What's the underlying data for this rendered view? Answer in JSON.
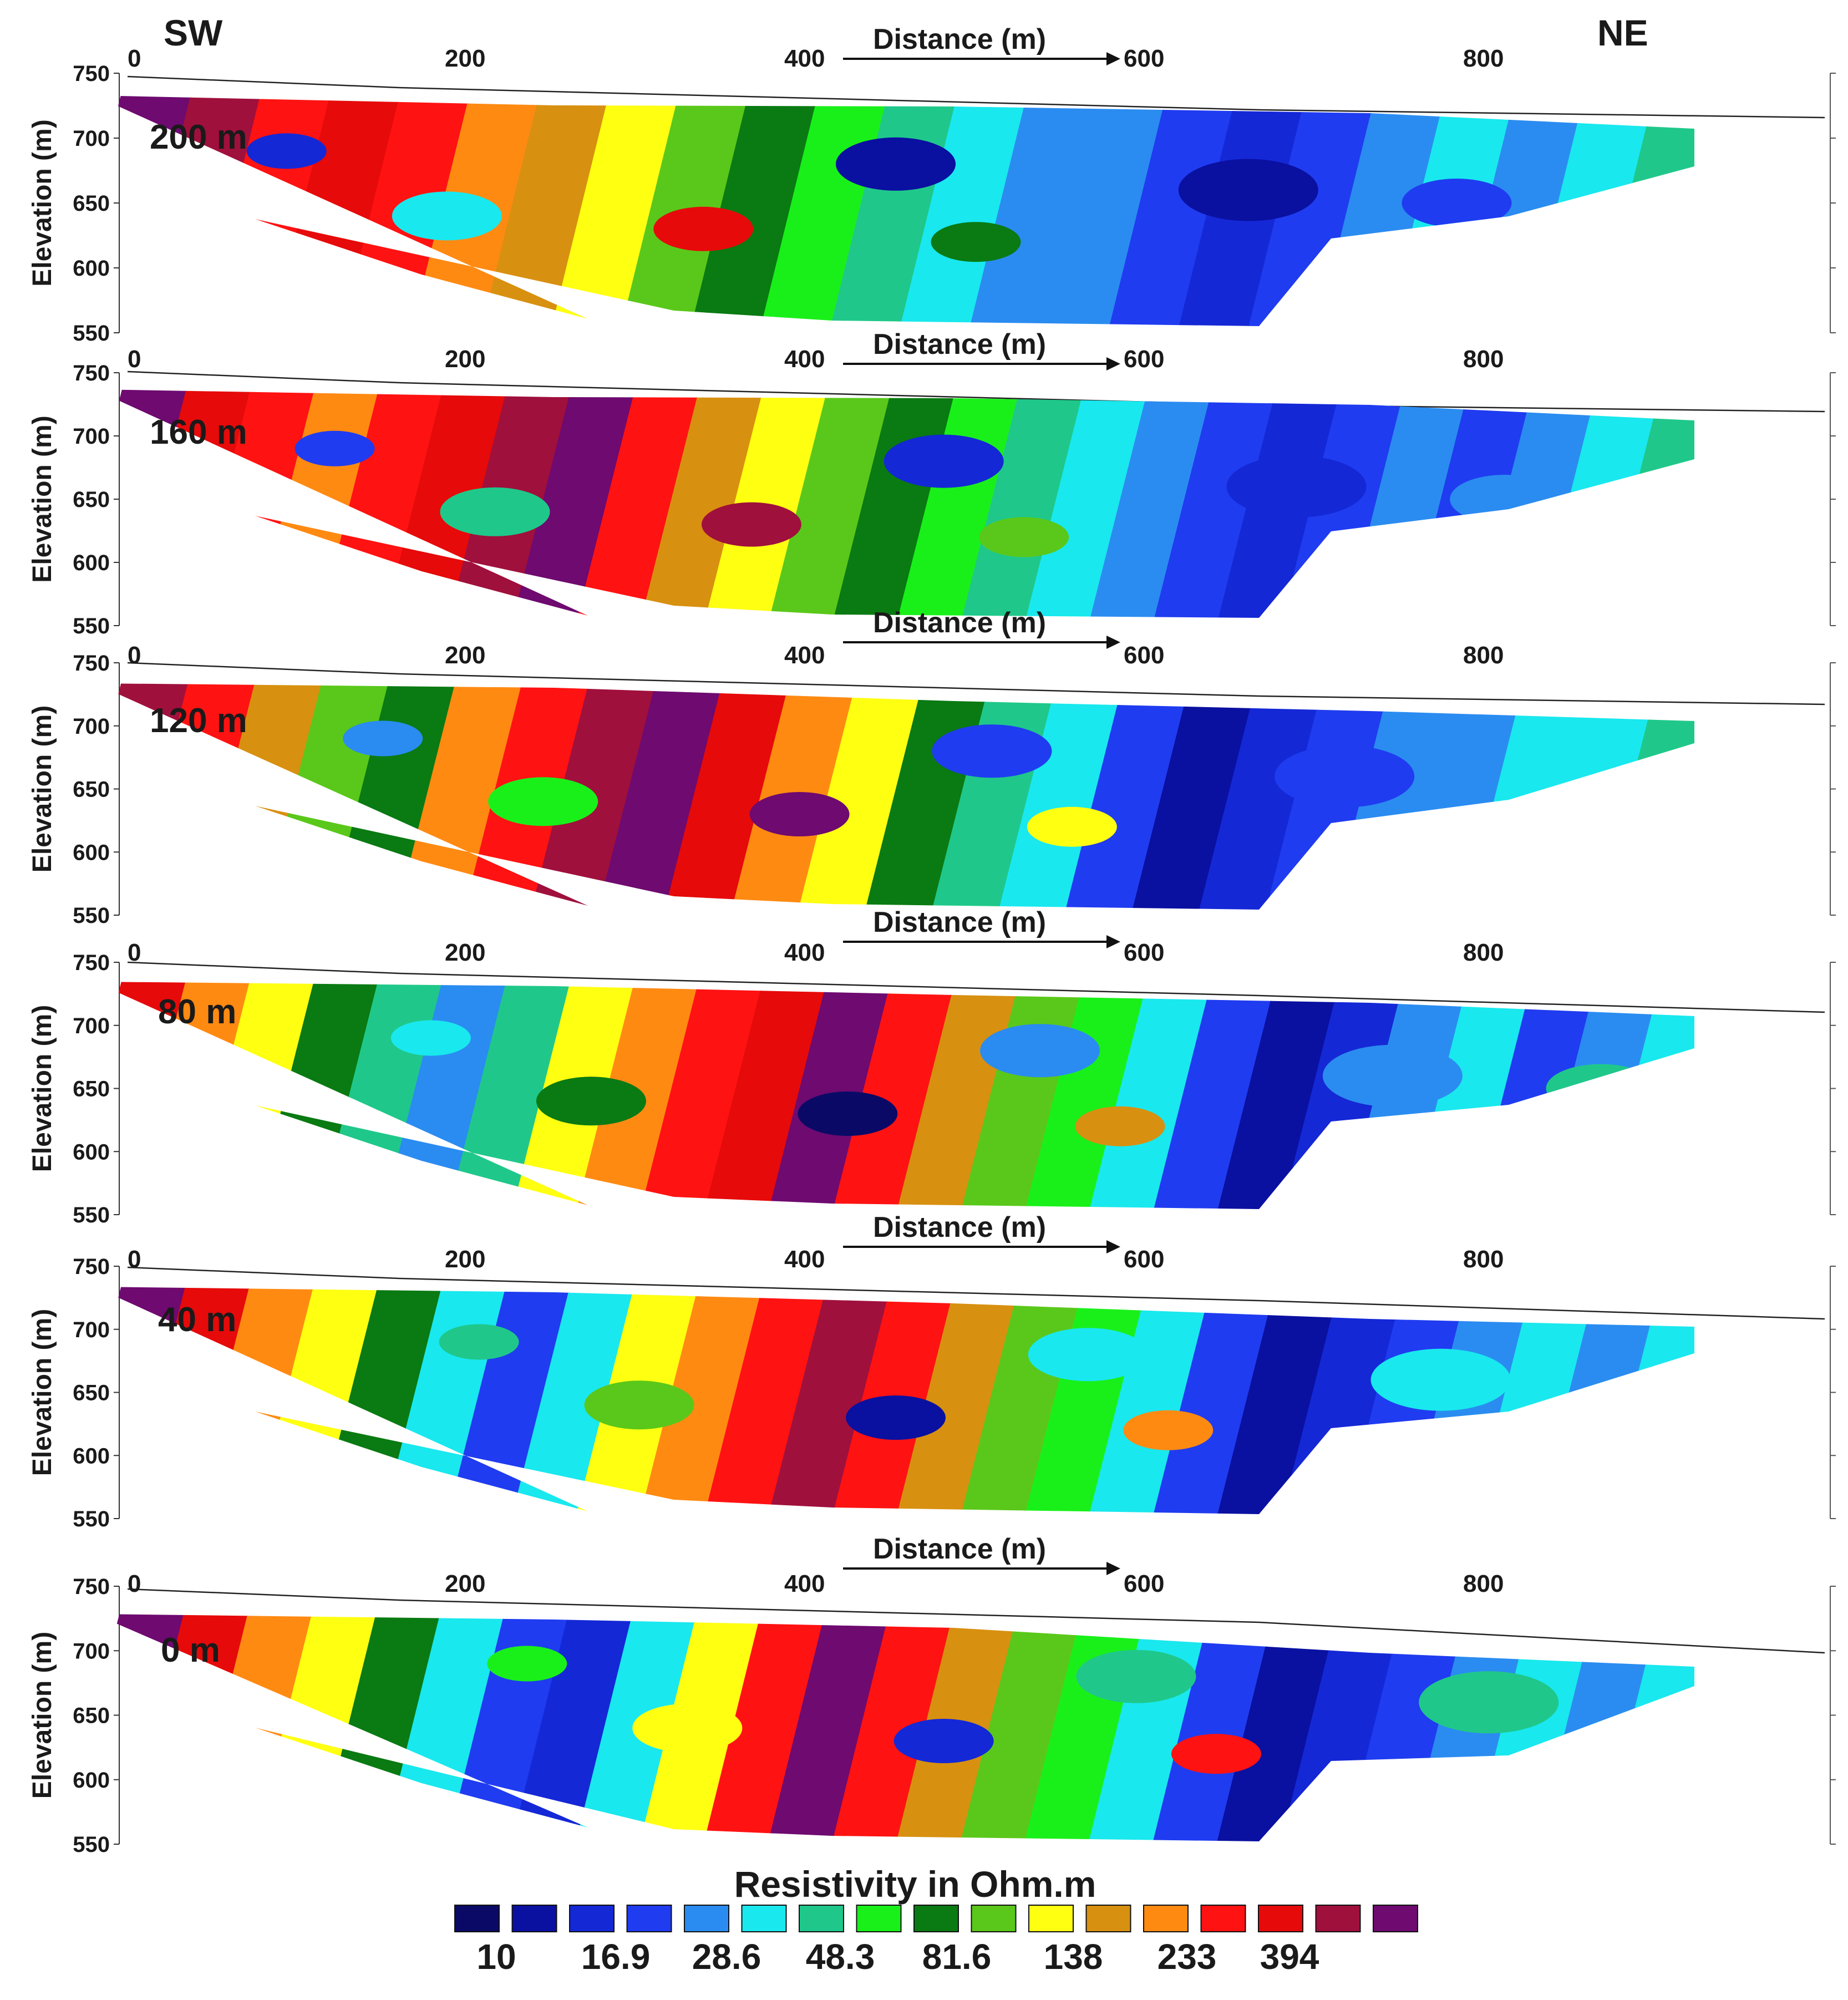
{
  "orientation": {
    "left": "SW",
    "right": "NE"
  },
  "x_axis": {
    "label": "Distance (m)",
    "ticks": [
      "0",
      "200",
      "400",
      "600",
      "800"
    ]
  },
  "y_axis": {
    "label": "Elevation (m)",
    "ticks": [
      "550",
      "600",
      "650",
      "700",
      "750"
    ]
  },
  "panels": [
    {
      "id": "p200",
      "label": "200 m"
    },
    {
      "id": "p160",
      "label": "160 m"
    },
    {
      "id": "p120",
      "label": "120 m"
    },
    {
      "id": "p80",
      "label": "80 m"
    },
    {
      "id": "p40",
      "label": "40 m"
    },
    {
      "id": "p0",
      "label": "0 m"
    }
  ],
  "legend": {
    "title": "Resistivity in Ohm.m",
    "colors": [
      "#0a0a66",
      "#0a10a0",
      "#1428d6",
      "#1f3cf0",
      "#2a8cf0",
      "#19e8ee",
      "#1fc88a",
      "#19f01a",
      "#0a7a12",
      "#5ac81a",
      "#ffff12",
      "#d89010",
      "#ff8a12",
      "#ff1212",
      "#e60a0a",
      "#a0103c",
      "#6e0a70"
    ],
    "labels": [
      "10",
      "16.9",
      "28.6",
      "48.3",
      "81.6",
      "138",
      "233",
      "394"
    ]
  }
}
